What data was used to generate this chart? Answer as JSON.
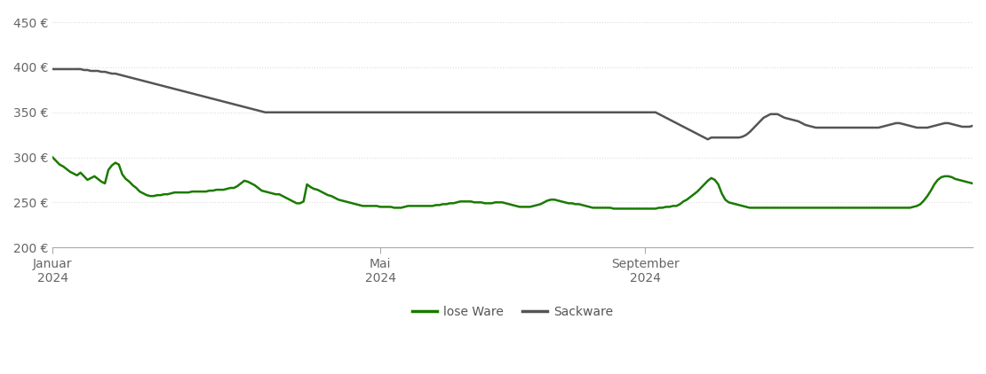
{
  "ylim": [
    200,
    460
  ],
  "yticks": [
    200,
    250,
    300,
    350,
    400,
    450
  ],
  "ytick_labels": [
    "200 €",
    "250 €",
    "300 €",
    "350 €",
    "400 €",
    "450 €"
  ],
  "xtick_labels": [
    "Januar\n2024",
    "Mai\n2024",
    "September\n2024"
  ],
  "lose_ware_color": "#1a7a00",
  "sackware_color": "#555555",
  "background_color": "#ffffff",
  "grid_color": "#dddddd",
  "legend_labels": [
    "lose Ware",
    "Sackware"
  ],
  "lose_ware": [
    300,
    296,
    292,
    290,
    287,
    284,
    282,
    280,
    283,
    279,
    275,
    277,
    279,
    276,
    273,
    271,
    286,
    291,
    294,
    292,
    281,
    276,
    273,
    269,
    266,
    262,
    260,
    258,
    257,
    257,
    258,
    258,
    259,
    259,
    260,
    261,
    261,
    261,
    261,
    261,
    262,
    262,
    262,
    262,
    262,
    263,
    263,
    264,
    264,
    264,
    265,
    266,
    266,
    268,
    271,
    274,
    273,
    271,
    269,
    266,
    263,
    262,
    261,
    260,
    259,
    259,
    257,
    255,
    253,
    251,
    249,
    249,
    251,
    270,
    267,
    265,
    264,
    262,
    260,
    258,
    257,
    255,
    253,
    252,
    251,
    250,
    249,
    248,
    247,
    246,
    246,
    246,
    246,
    246,
    245,
    245,
    245,
    245,
    244,
    244,
    244,
    245,
    246,
    246,
    246,
    246,
    246,
    246,
    246,
    246,
    247,
    247,
    248,
    248,
    249,
    249,
    250,
    251,
    251,
    251,
    251,
    250,
    250,
    250,
    249,
    249,
    249,
    250,
    250,
    250,
    249,
    248,
    247,
    246,
    245,
    245,
    245,
    245,
    246,
    247,
    248,
    250,
    252,
    253,
    253,
    252,
    251,
    250,
    249,
    249,
    248,
    248,
    247,
    246,
    245,
    244,
    244,
    244,
    244,
    244,
    244,
    243,
    243,
    243,
    243,
    243,
    243,
    243,
    243,
    243,
    243,
    243,
    243,
    243,
    244,
    244,
    245,
    245,
    246,
    246,
    248,
    251,
    253,
    256,
    259,
    262,
    266,
    270,
    274,
    277,
    275,
    270,
    260,
    253,
    250,
    249,
    248,
    247,
    246,
    245,
    244,
    244,
    244,
    244,
    244,
    244,
    244,
    244,
    244,
    244,
    244,
    244,
    244,
    244,
    244,
    244,
    244,
    244,
    244,
    244,
    244,
    244,
    244,
    244,
    244,
    244,
    244,
    244,
    244,
    244,
    244,
    244,
    244,
    244,
    244,
    244,
    244,
    244,
    244,
    244,
    244,
    244,
    244,
    244,
    244,
    244,
    244,
    245,
    246,
    248,
    252,
    257,
    263,
    270,
    275,
    278,
    279,
    279,
    278,
    276,
    275,
    274,
    273,
    272,
    271
  ],
  "sackware": [
    398,
    398,
    398,
    398,
    398,
    398,
    398,
    398,
    398,
    397,
    397,
    396,
    396,
    396,
    395,
    395,
    394,
    393,
    393,
    392,
    391,
    390,
    389,
    388,
    387,
    386,
    385,
    384,
    383,
    382,
    381,
    380,
    379,
    378,
    377,
    376,
    375,
    374,
    373,
    372,
    371,
    370,
    369,
    368,
    367,
    366,
    365,
    364,
    363,
    362,
    361,
    360,
    359,
    358,
    357,
    356,
    355,
    354,
    353,
    352,
    351,
    350,
    350,
    350,
    350,
    350,
    350,
    350,
    350,
    350,
    350,
    350,
    350,
    350,
    350,
    350,
    350,
    350,
    350,
    350,
    350,
    350,
    350,
    350,
    350,
    350,
    350,
    350,
    350,
    350,
    350,
    350,
    350,
    350,
    350,
    350,
    350,
    350,
    350,
    350,
    350,
    350,
    350,
    350,
    350,
    350,
    350,
    350,
    350,
    350,
    350,
    350,
    350,
    350,
    350,
    350,
    350,
    350,
    350,
    350,
    350,
    350,
    350,
    350,
    350,
    350,
    350,
    350,
    350,
    350,
    350,
    350,
    350,
    350,
    350,
    350,
    350,
    350,
    350,
    350,
    350,
    350,
    350,
    350,
    350,
    350,
    350,
    350,
    350,
    350,
    350,
    350,
    350,
    350,
    350,
    350,
    350,
    350,
    350,
    350,
    350,
    350,
    350,
    350,
    350,
    350,
    350,
    350,
    350,
    350,
    350,
    350,
    350,
    350,
    348,
    346,
    344,
    342,
    340,
    338,
    336,
    334,
    332,
    330,
    328,
    326,
    324,
    322,
    320,
    322,
    322,
    322,
    322,
    322,
    322,
    322,
    322,
    322,
    323,
    325,
    328,
    332,
    336,
    340,
    344,
    346,
    348,
    348,
    348,
    346,
    344,
    343,
    342,
    341,
    340,
    338,
    336,
    335,
    334,
    333,
    333,
    333,
    333,
    333,
    333,
    333,
    333,
    333,
    333,
    333,
    333,
    333,
    333,
    333,
    333,
    333,
    333,
    333,
    334,
    335,
    336,
    337,
    338,
    338,
    337,
    336,
    335,
    334,
    333,
    333,
    333,
    333,
    334,
    335,
    336,
    337,
    338,
    338,
    337,
    336,
    335,
    334,
    334,
    334,
    335
  ]
}
